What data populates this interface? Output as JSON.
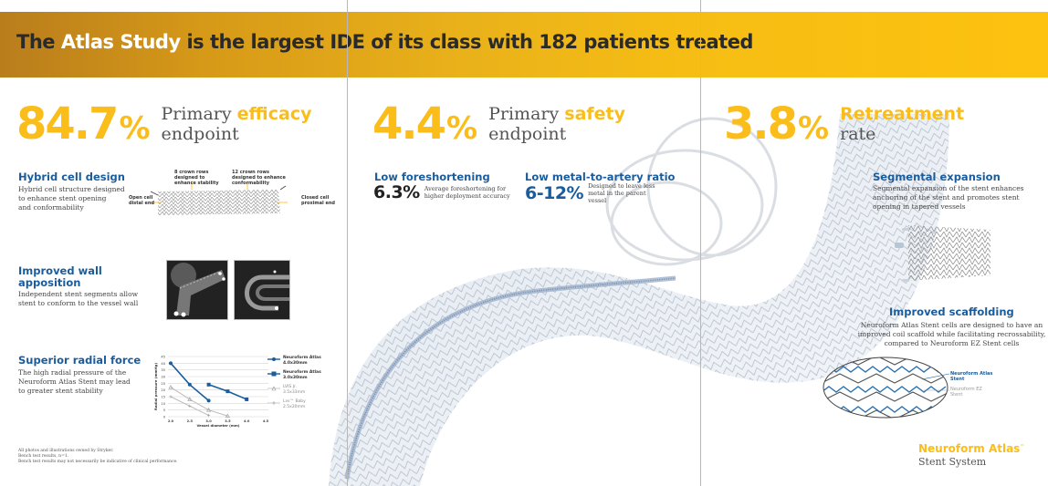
{
  "banner": {
    "highlight": "The Atlas Study",
    "prefix": "The ",
    "highlight_word": "Atlas Study",
    "rest": " is the largest IDE of its class with 182 patients treated"
  },
  "stats": [
    {
      "value": "84.7",
      "unit": "%",
      "line1_pre": "Primary ",
      "keyword": "efficacy",
      "line2": "endpoint"
    },
    {
      "value": "4.4",
      "unit": "%",
      "line1_pre": "Primary ",
      "keyword": "safety",
      "line2": "endpoint"
    },
    {
      "value": "3.8",
      "unit": "%",
      "keyword": "Retreatment",
      "line2": "rate"
    }
  ],
  "features": {
    "hybrid": {
      "title": "Hybrid cell design",
      "desc": [
        "Hybrid cell structure designed",
        "to enhance stent opening",
        "and conformability"
      ],
      "labels": {
        "open_cell": [
          "Open cell",
          "distal end"
        ],
        "crown8": [
          "8 crown rows",
          "designed to",
          "enhance stability"
        ],
        "crown12": [
          "12 crown rows",
          "designed to enhance",
          "conformability"
        ],
        "closed_cell": [
          "Closed cell",
          "proximal end"
        ]
      }
    },
    "wall": {
      "title": [
        "Improved wall",
        "apposition"
      ],
      "desc": [
        "Independent stent segments allow",
        "stent to conform to the vessel wall"
      ]
    },
    "radial": {
      "title": "Superior radial force",
      "desc": [
        "The high radial pressure of the",
        "Neuroform Atlas Stent may lead",
        "to greater stent stability"
      ]
    },
    "foreshortening": {
      "title": "Low foreshortening",
      "value": "6.3%",
      "desc": "Average foreshortening for higher deployment accuracy"
    },
    "metal": {
      "title": "Low metal-to-artery ratio",
      "value": "6-12%",
      "desc": "Designed to leave less metal in the parent vessel"
    },
    "segmental": {
      "title": "Segmental expansion",
      "desc": [
        "Segmental expansion of the stent enhances",
        "anchoring of the stent and promotes stent",
        "opening in tapered vessels"
      ]
    },
    "scaffolding": {
      "title": "Improved scaffolding",
      "desc": [
        "Neuroform Atlas Stent cells are designed to have an",
        "improved coil scaffold while facilitating recrossability,",
        "compared to Neuroform EZ Stent cells"
      ],
      "legend": [
        {
          "label": [
            "Neuroform Atlas",
            "Stent"
          ],
          "color": "#1a5c9c"
        },
        {
          "label": [
            "Neuroform EZ",
            "Stent"
          ],
          "color": "#999999"
        }
      ]
    }
  },
  "chart_data": {
    "type": "line",
    "title": "",
    "xlabel": "Vessel diameter (mm)",
    "ylabel": "Radial pressure (mmHg)",
    "x_ticks": [
      "2.0",
      "2.5",
      "3.0",
      "3.5",
      "4.0",
      "4.5"
    ],
    "y_ticks": [
      "0",
      "5",
      "10",
      "15",
      "20",
      "25",
      "30",
      "35",
      "40",
      "45"
    ],
    "xlim": [
      2.0,
      4.5
    ],
    "ylim": [
      0,
      45
    ],
    "grid": true,
    "legend_position": "right",
    "series": [
      {
        "name": "Neuroform Atlas 4.0x30mm",
        "x": [
          2.0,
          2.5,
          3.0
        ],
        "y": [
          40,
          24,
          12
        ],
        "color": "#1a5c9c",
        "marker": "circle"
      },
      {
        "name": "Neuroform Atlas 3.0x30mm",
        "x": [
          3.0,
          3.5,
          4.0
        ],
        "y": [
          24,
          19,
          13
        ],
        "color": "#1a5c9c",
        "marker": "square"
      },
      {
        "name": "LVIS Jr. 3.5x33mm",
        "x": [
          2.0,
          2.5,
          3.0,
          3.5
        ],
        "y": [
          22,
          13,
          5,
          0.5
        ],
        "color": "#bbbbbb",
        "marker": "triangle"
      },
      {
        "name": "Lvs™ Baby 2.5x20mm",
        "x": [
          2.0,
          2.5,
          3.0
        ],
        "y": [
          15,
          8,
          1
        ],
        "color": "#bbbbbb",
        "marker": "cross"
      }
    ]
  },
  "footnote": [
    "All photos and illustrations owned by Stryker.",
    "Bench test results, n=1.",
    "Bench test results may not necessarily be indicative of clinical performance."
  ],
  "brand": {
    "name": "Neuroform Atlas",
    "tm": "™",
    "sub": "Stent System"
  },
  "colors": {
    "accent_yellow": "#fbbd19",
    "accent_blue": "#1a5c9c",
    "banner_dark": "#b97d1c"
  }
}
